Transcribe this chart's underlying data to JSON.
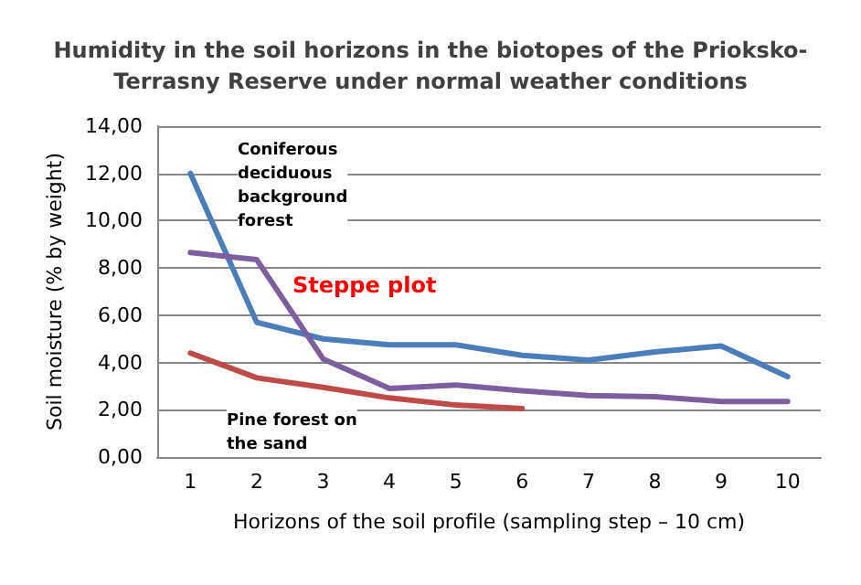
{
  "chart_data": {
    "type": "line",
    "title": "Humidity in the soil horizons in the biotopes of the Prioksko-\nTerrasny Reserve under normal weather conditions",
    "xlabel": "Horizons of the soil profile (sampling step – 10 cm)",
    "ylabel": "Soil moisture (% by weight)",
    "categories": [
      "1",
      "2",
      "3",
      "4",
      "5",
      "6",
      "7",
      "8",
      "9",
      "10"
    ],
    "series": [
      {
        "name": "Coniferous\ndeciduous\nbackground\nforest",
        "color": "#4a7ebb",
        "values": [
          12.0,
          5.7,
          5.0,
          4.75,
          4.75,
          4.3,
          4.1,
          4.45,
          4.7,
          3.4
        ]
      },
      {
        "name": "Steppe plot",
        "color": "#7d5fa0",
        "values": [
          8.65,
          8.35,
          4.15,
          2.9,
          3.05,
          2.8,
          2.6,
          2.55,
          2.35,
          2.35
        ]
      },
      {
        "name": "Pine forest on\nthe sand",
        "color": "#be4b48",
        "values": [
          4.4,
          3.35,
          2.95,
          2.5,
          2.2,
          2.05,
          null,
          null,
          null,
          null
        ]
      }
    ],
    "ylim": [
      0,
      14
    ],
    "yticks": [
      {
        "value": 0,
        "label": "0,00"
      },
      {
        "value": 2,
        "label": "2,00"
      },
      {
        "value": 4,
        "label": "4,00"
      },
      {
        "value": 6,
        "label": "6,00"
      },
      {
        "value": 8,
        "label": "8,00"
      },
      {
        "value": 10,
        "label": "10,00"
      },
      {
        "value": 12,
        "label": "12,00"
      },
      {
        "value": 14,
        "label": "14,00"
      }
    ],
    "grid": "y",
    "legend": false,
    "marker": "none",
    "line_style": "solid"
  }
}
